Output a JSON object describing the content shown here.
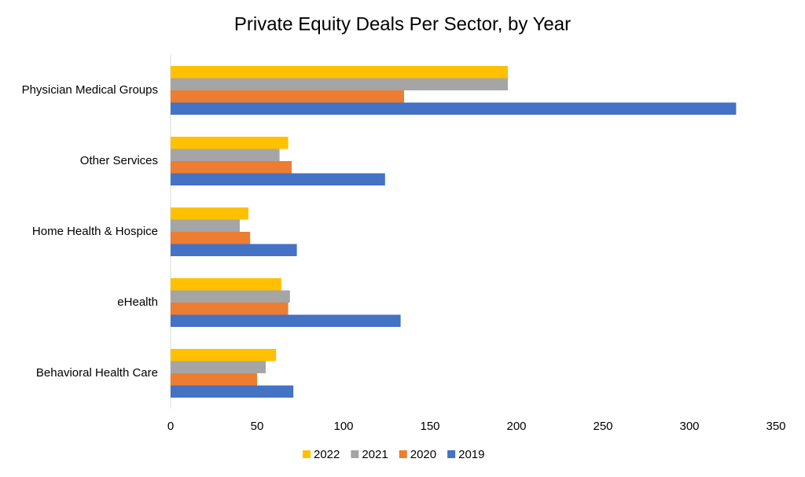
{
  "chart_data": {
    "type": "bar",
    "orientation": "horizontal",
    "title": "Private Equity Deals Per Sector, by Year",
    "categories": [
      "Physician Medical Groups",
      "Other Services",
      "Home Health & Hospice",
      "eHealth",
      "Behavioral Health Care"
    ],
    "series": [
      {
        "name": "2022",
        "color": "#ffc000",
        "values": [
          195,
          68,
          45,
          64,
          61
        ]
      },
      {
        "name": "2021",
        "color": "#a5a5a5",
        "values": [
          195,
          63,
          40,
          69,
          55
        ]
      },
      {
        "name": "2020",
        "color": "#ed7d31",
        "values": [
          135,
          70,
          46,
          68,
          50
        ]
      },
      {
        "name": "2019",
        "color": "#4472c4",
        "values": [
          327,
          124,
          73,
          133,
          71
        ]
      }
    ],
    "xlim": [
      0,
      350
    ],
    "xticks": [
      0,
      50,
      100,
      150,
      200,
      250,
      300,
      350
    ],
    "grid": false,
    "legend": "bottom"
  }
}
